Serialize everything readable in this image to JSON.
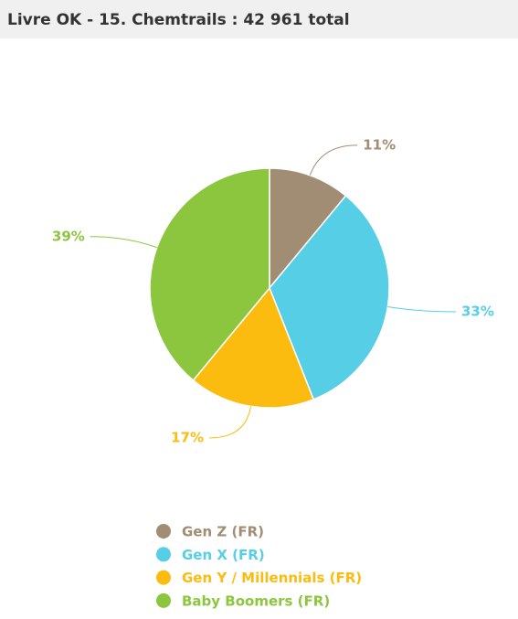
{
  "chart_data": {
    "type": "pie",
    "title": "Livre OK - 15. Chemtrails : 42 961 total",
    "categories": [
      "Gen Z (FR)",
      "Gen X (FR)",
      "Gen Y / Millennials (FR)",
      "Baby Boomers (FR)"
    ],
    "values": [
      11,
      33,
      17,
      39
    ],
    "value_labels": [
      "11%",
      "33%",
      "17%",
      "39%"
    ],
    "colors": [
      "#a18d74",
      "#56cee6",
      "#fbbc0f",
      "#8cc63f"
    ]
  }
}
